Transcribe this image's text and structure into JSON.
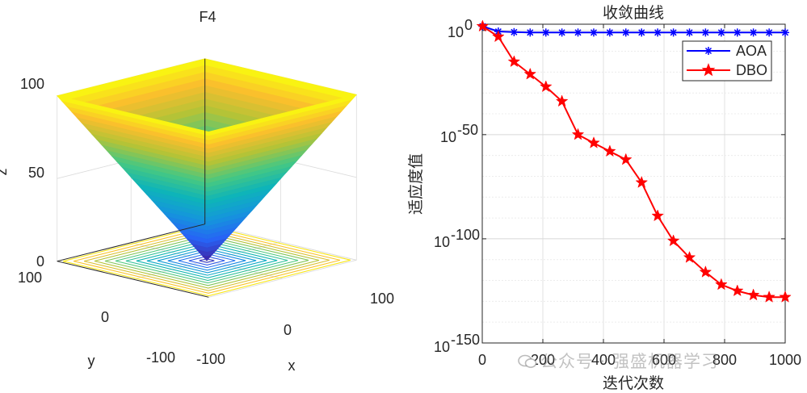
{
  "left_chart": {
    "title": "F4",
    "xlabel": "x",
    "ylabel": "y",
    "zlabel": "z",
    "x_ticks": [
      "-100",
      "0",
      "100"
    ],
    "y_ticks": [
      "100",
      "0",
      "-100"
    ],
    "z_ticks": [
      "0",
      "50",
      "100"
    ]
  },
  "watermark": "公众号 · 强盛机器学习",
  "chart_data": [
    {
      "type": "surface3d",
      "title": "F4",
      "function": "z = max(|x|, |y|)",
      "xlabel": "x",
      "ylabel": "y",
      "zlabel": "z",
      "xlim": [
        -100,
        100
      ],
      "ylim": [
        -100,
        100
      ],
      "zlim": [
        0,
        100
      ],
      "x_ticks": [
        -100,
        0,
        100
      ],
      "y_ticks": [
        -100,
        0,
        100
      ],
      "z_ticks": [
        0,
        50,
        100
      ],
      "contour_levels": [
        5,
        12,
        19,
        26,
        33,
        40,
        47,
        54,
        61,
        68,
        75,
        82,
        89,
        96
      ],
      "colormap": "parula"
    },
    {
      "type": "line",
      "title": "收敛曲线",
      "xlabel": "迭代次数",
      "ylabel": "适应度值",
      "yscale": "log",
      "xlim": [
        0,
        1000
      ],
      "ylim_exponent": [
        -150,
        3
      ],
      "x_ticks": [
        "0",
        "200",
        "400",
        "600",
        "800",
        "1000"
      ],
      "y_tick_exponents": [
        "0",
        "-50",
        "-100",
        "-150"
      ],
      "legend_position": "top-right",
      "grid": true,
      "series": [
        {
          "name": "AOA",
          "color": "#0000FF",
          "marker": "asterisk",
          "x": [
            1,
            53,
            105,
            158,
            210,
            263,
            316,
            368,
            421,
            474,
            526,
            579,
            631,
            684,
            737,
            789,
            842,
            895,
            947,
            1000
          ],
          "log10_y": [
            2,
            -0.5,
            -0.8,
            -1,
            -1,
            -1,
            -1,
            -1,
            -1,
            -1,
            -1,
            -1,
            -1,
            -1,
            -1,
            -1,
            -1,
            -1,
            -1,
            -1
          ]
        },
        {
          "name": "DBO",
          "color": "#FF0000",
          "marker": "star",
          "x": [
            1,
            53,
            105,
            158,
            210,
            263,
            316,
            368,
            421,
            474,
            526,
            579,
            631,
            684,
            737,
            789,
            842,
            895,
            947,
            1000
          ],
          "log10_y": [
            2,
            -3,
            -15,
            -21,
            -27,
            -34,
            -50,
            -54,
            -58,
            -62,
            -73,
            -89,
            -101,
            -109,
            -116,
            -122,
            -125,
            -127,
            -128,
            -128
          ]
        }
      ]
    }
  ]
}
